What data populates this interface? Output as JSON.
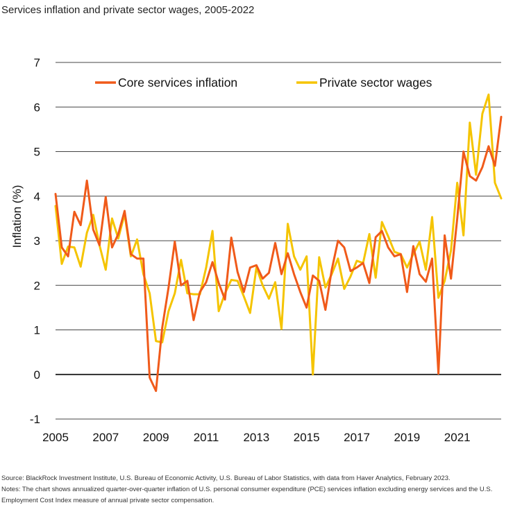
{
  "title": "Services inflation and private sector wages, 2005-2022",
  "footnotes": {
    "source": "Source: BlackRock Investment Institute, U.S. Bureau of Economic Activity, U.S. Bureau of Labor Statistics, with data from Haver Analytics, February 2023.",
    "notes": "Notes: The chart shows annualized quarter-over-quarter inflation of U.S. personal consumer expenditure (PCE) services inflation excluding energy services and the U.S. Employment Cost Index measure of annual private sector compensation."
  },
  "chart_data": {
    "type": "line",
    "title": "Services inflation and private sector wages, 2005-2022",
    "xlabel": "",
    "ylabel": "Inflation (%)",
    "xlim": [
      2005,
      2022.75
    ],
    "ylim": [
      -1,
      7
    ],
    "x_ticks": [
      "2005",
      "2007",
      "2009",
      "2011",
      "2013",
      "2015",
      "2017",
      "2019",
      "2021"
    ],
    "y_ticks": [
      "-1",
      "0",
      "1",
      "2",
      "3",
      "4",
      "5",
      "6",
      "7"
    ],
    "grid": true,
    "legend_position": "top",
    "x": [
      2005.0,
      2005.25,
      2005.5,
      2005.75,
      2006.0,
      2006.25,
      2006.5,
      2006.75,
      2007.0,
      2007.25,
      2007.5,
      2007.75,
      2008.0,
      2008.25,
      2008.5,
      2008.75,
      2009.0,
      2009.25,
      2009.5,
      2009.75,
      2010.0,
      2010.25,
      2010.5,
      2010.75,
      2011.0,
      2011.25,
      2011.5,
      2011.75,
      2012.0,
      2012.25,
      2012.5,
      2012.75,
      2013.0,
      2013.25,
      2013.5,
      2013.75,
      2014.0,
      2014.25,
      2014.5,
      2014.75,
      2015.0,
      2015.25,
      2015.5,
      2015.75,
      2016.0,
      2016.25,
      2016.5,
      2016.75,
      2017.0,
      2017.25,
      2017.5,
      2017.75,
      2018.0,
      2018.25,
      2018.5,
      2018.75,
      2019.0,
      2019.25,
      2019.5,
      2019.75,
      2020.0,
      2020.25,
      2020.5,
      2020.75,
      2021.0,
      2021.25,
      2021.5,
      2021.75,
      2022.0,
      2022.25,
      2022.5,
      2022.75
    ],
    "series": [
      {
        "name": "Core services inflation",
        "color": "#f05a1a",
        "values": [
          4.05,
          2.85,
          2.65,
          3.65,
          3.35,
          4.35,
          3.25,
          2.9,
          3.98,
          2.85,
          3.15,
          3.67,
          2.7,
          2.6,
          2.6,
          -0.07,
          -0.37,
          1.05,
          1.95,
          2.98,
          2.0,
          2.1,
          1.22,
          1.85,
          2.07,
          2.52,
          2.05,
          1.68,
          3.07,
          2.3,
          1.85,
          2.4,
          2.45,
          2.15,
          2.28,
          2.95,
          2.25,
          2.72,
          2.25,
          1.85,
          1.5,
          2.22,
          2.1,
          1.45,
          2.35,
          3.0,
          2.85,
          2.32,
          2.4,
          2.5,
          2.05,
          3.08,
          3.22,
          2.85,
          2.65,
          2.7,
          1.85,
          2.88,
          2.25,
          2.08,
          2.6,
          0.02,
          3.12,
          2.15,
          3.5,
          5.0,
          4.45,
          4.35,
          4.65,
          5.12,
          4.68,
          5.78
        ]
      },
      {
        "name": "Private sector wages",
        "color": "#f5c400",
        "values": [
          3.78,
          2.48,
          2.87,
          2.85,
          2.42,
          3.18,
          3.58,
          2.9,
          2.35,
          3.5,
          3.05,
          3.6,
          2.65,
          3.03,
          2.25,
          1.82,
          0.75,
          0.72,
          1.42,
          1.82,
          2.57,
          1.82,
          1.8,
          1.8,
          2.4,
          3.22,
          1.42,
          1.82,
          2.12,
          2.1,
          1.75,
          1.38,
          2.4,
          2.0,
          1.7,
          2.07,
          1.02,
          3.38,
          2.65,
          2.35,
          2.65,
          0.0,
          2.63,
          1.95,
          2.25,
          2.6,
          1.92,
          2.2,
          2.55,
          2.5,
          3.15,
          2.17,
          3.42,
          3.1,
          2.75,
          2.7,
          2.4,
          2.7,
          2.98,
          2.35,
          3.53,
          1.72,
          2.1,
          2.78,
          4.3,
          3.12,
          5.65,
          4.48,
          5.85,
          6.28,
          4.3,
          3.95
        ]
      }
    ]
  }
}
